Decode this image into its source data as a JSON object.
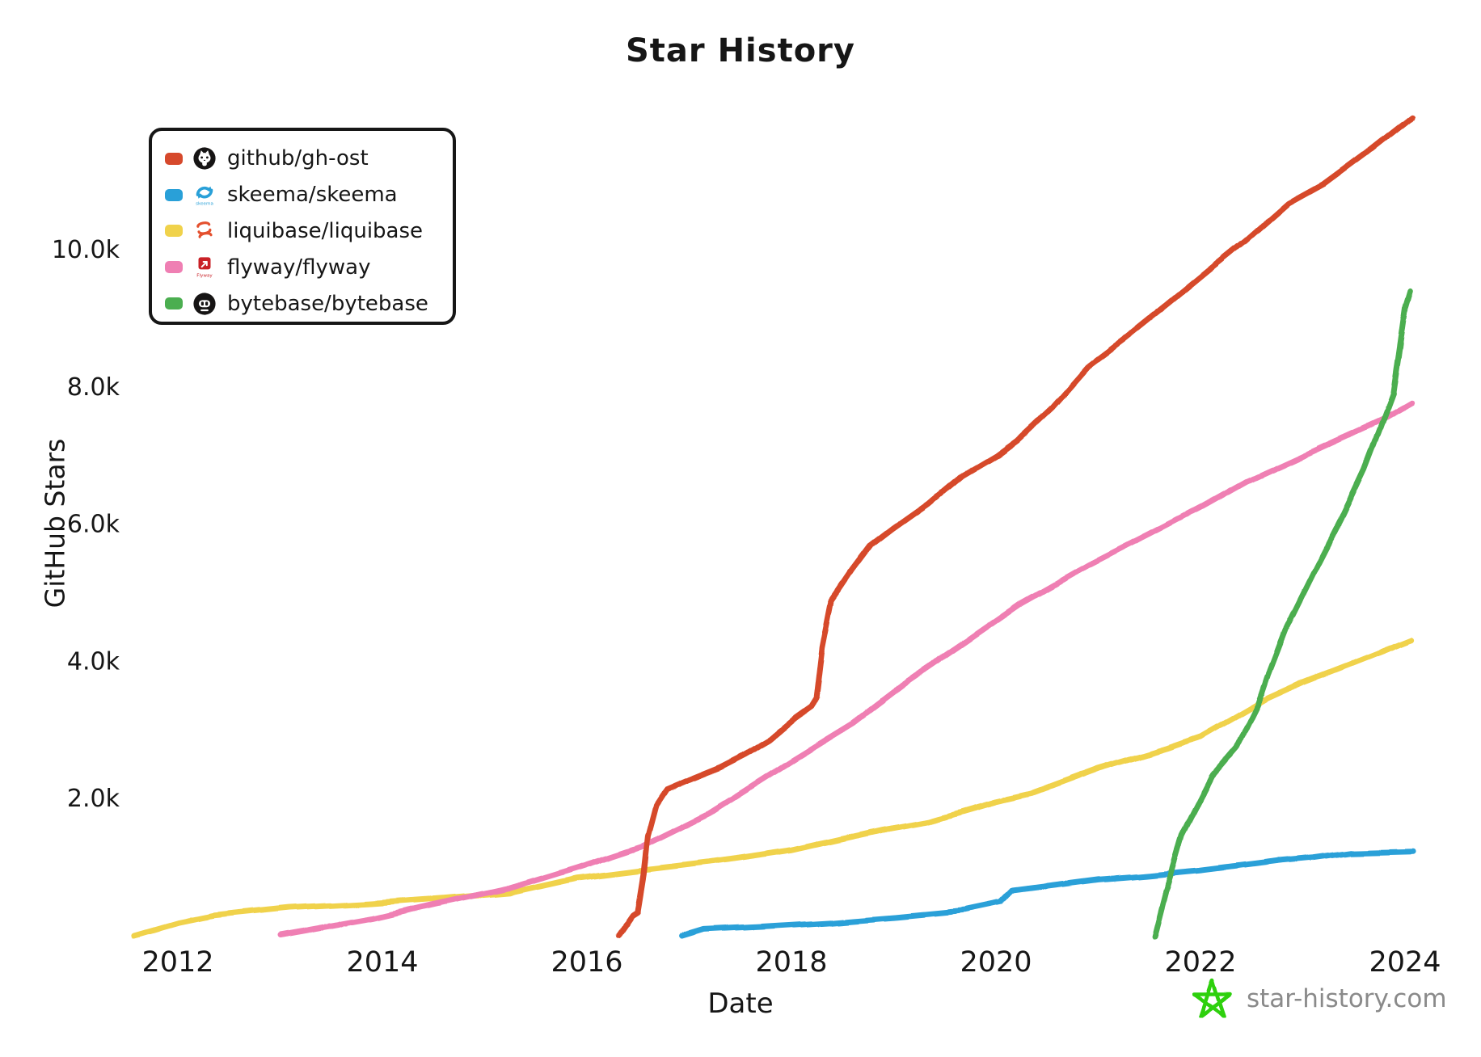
{
  "page": {
    "title": "Star History"
  },
  "chart_data": {
    "type": "line",
    "title": "Star History",
    "xlabel": "Date",
    "ylabel": "GitHub Stars",
    "grid": false,
    "legend_position": "top-left",
    "xlim": [
      2011.45,
      2024.45
    ],
    "ylim": [
      0,
      12300
    ],
    "x_ticks": [
      {
        "label": "2012",
        "year": 2012
      },
      {
        "label": "2014",
        "year": 2014
      },
      {
        "label": "2016",
        "year": 2016
      },
      {
        "label": "2018",
        "year": 2018
      },
      {
        "label": "2020",
        "year": 2020
      },
      {
        "label": "2022",
        "year": 2022
      },
      {
        "label": "2024",
        "year": 2024
      }
    ],
    "y_ticks": [
      {
        "label": "2.0k",
        "value": 2000
      },
      {
        "label": "4.0k",
        "value": 4000
      },
      {
        "label": "6.0k",
        "value": 6000
      },
      {
        "label": "8.0k",
        "value": 8000
      },
      {
        "label": "10.0k",
        "value": 10000
      }
    ],
    "series": [
      {
        "name": "github/gh-ost",
        "color": "#d6492c",
        "icon": "github-logo",
        "points": [
          [
            2016.31,
            0
          ],
          [
            2016.45,
            300
          ],
          [
            2016.5,
            350
          ],
          [
            2016.56,
            900
          ],
          [
            2016.6,
            1450
          ],
          [
            2016.68,
            1900
          ],
          [
            2016.78,
            2130
          ],
          [
            2017.0,
            2270
          ],
          [
            2017.3,
            2450
          ],
          [
            2017.56,
            2650
          ],
          [
            2017.8,
            2860
          ],
          [
            2018.04,
            3160
          ],
          [
            2018.2,
            3330
          ],
          [
            2018.25,
            3450
          ],
          [
            2018.31,
            4200
          ],
          [
            2018.4,
            4880
          ],
          [
            2018.6,
            5320
          ],
          [
            2018.78,
            5680
          ],
          [
            2019.0,
            5930
          ],
          [
            2019.35,
            6300
          ],
          [
            2019.67,
            6700
          ],
          [
            2020.0,
            6990
          ],
          [
            2020.2,
            7210
          ],
          [
            2020.55,
            7700
          ],
          [
            2020.91,
            8310
          ],
          [
            2021.25,
            8690
          ],
          [
            2021.7,
            9230
          ],
          [
            2022.1,
            9720
          ],
          [
            2022.44,
            10130
          ],
          [
            2022.86,
            10680
          ],
          [
            2023.2,
            10960
          ],
          [
            2023.6,
            11400
          ],
          [
            2024.06,
            11940
          ]
        ]
      },
      {
        "name": "skeema/skeema",
        "color": "#29a0d8",
        "icon": "skeema-logo",
        "points": [
          [
            2016.93,
            0
          ],
          [
            2017.14,
            95
          ],
          [
            2017.7,
            135
          ],
          [
            2018.38,
            195
          ],
          [
            2019.0,
            270
          ],
          [
            2019.7,
            370
          ],
          [
            2020.05,
            480
          ],
          [
            2020.17,
            660
          ],
          [
            2020.35,
            695
          ],
          [
            2021.0,
            820
          ],
          [
            2021.5,
            880
          ],
          [
            2022.0,
            950
          ],
          [
            2022.8,
            1100
          ],
          [
            2023.1,
            1140
          ],
          [
            2023.46,
            1215
          ],
          [
            2024.08,
            1240
          ]
        ]
      },
      {
        "name": "liquibase/liquibase",
        "color": "#f0d24b",
        "icon": "liquibase-logo",
        "points": [
          [
            2011.58,
            0
          ],
          [
            2012.0,
            180
          ],
          [
            2012.34,
            285
          ],
          [
            2013.1,
            400
          ],
          [
            2013.9,
            465
          ],
          [
            2014.6,
            540
          ],
          [
            2015.24,
            620
          ],
          [
            2015.9,
            840
          ],
          [
            2016.55,
            960
          ],
          [
            2017.2,
            1075
          ],
          [
            2018.0,
            1250
          ],
          [
            2018.9,
            1550
          ],
          [
            2019.35,
            1670
          ],
          [
            2020.0,
            1950
          ],
          [
            2020.35,
            2070
          ],
          [
            2021.0,
            2430
          ],
          [
            2021.67,
            2730
          ],
          [
            2022.0,
            2900
          ],
          [
            2022.66,
            3470
          ],
          [
            2023.0,
            3700
          ],
          [
            2023.5,
            3990
          ],
          [
            2024.06,
            4320
          ]
        ]
      },
      {
        "name": "flyway/flyway",
        "color": "#ef7fb3",
        "icon": "flyway-logo",
        "points": [
          [
            2013.0,
            0
          ],
          [
            2013.9,
            240
          ],
          [
            2014.6,
            480
          ],
          [
            2015.24,
            690
          ],
          [
            2015.9,
            990
          ],
          [
            2016.55,
            1310
          ],
          [
            2017.2,
            1790
          ],
          [
            2018.0,
            2550
          ],
          [
            2018.6,
            3100
          ],
          [
            2019.14,
            3710
          ],
          [
            2019.7,
            4280
          ],
          [
            2020.25,
            4850
          ],
          [
            2020.91,
            5410
          ],
          [
            2021.5,
            5860
          ],
          [
            2022.0,
            6250
          ],
          [
            2022.44,
            6620
          ],
          [
            2023.0,
            7000
          ],
          [
            2023.79,
            7540
          ],
          [
            2024.06,
            7770
          ]
        ]
      },
      {
        "name": "bytebase/bytebase",
        "color": "#4bae50",
        "icon": "bytebase-logo",
        "points": [
          [
            2021.55,
            0
          ],
          [
            2021.66,
            640
          ],
          [
            2021.82,
            1460
          ],
          [
            2022.11,
            2310
          ],
          [
            2022.35,
            2730
          ],
          [
            2022.56,
            3360
          ],
          [
            2022.65,
            3760
          ],
          [
            2022.84,
            4500
          ],
          [
            2023.1,
            5280
          ],
          [
            2023.37,
            6070
          ],
          [
            2023.6,
            6800
          ],
          [
            2023.79,
            7540
          ],
          [
            2023.88,
            7900
          ],
          [
            2024.0,
            9150
          ],
          [
            2024.05,
            9400
          ]
        ]
      }
    ]
  },
  "legend": {
    "items": [
      {
        "label": "github/gh-ost"
      },
      {
        "label": "skeema/skeema"
      },
      {
        "label": "liquibase/liquibase"
      },
      {
        "label": "flyway/flyway"
      },
      {
        "label": "bytebase/bytebase"
      }
    ],
    "skeema_wordmark": "skeema",
    "flyway_wordmark": "Flyway"
  },
  "branding": {
    "text": "star-history.com",
    "icon": "star-logo",
    "star_color": "#2fd011",
    "text_color": "#8a8a8a"
  }
}
